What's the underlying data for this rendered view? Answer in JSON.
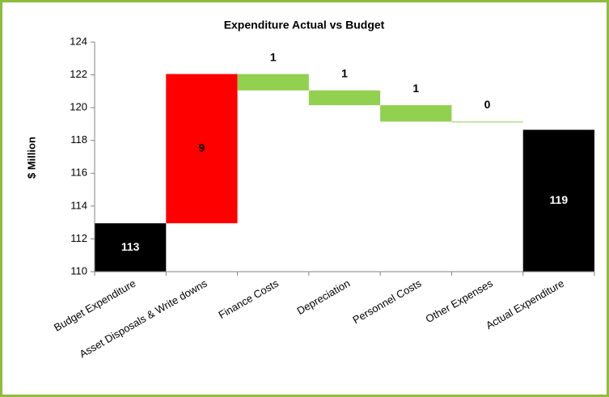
{
  "chart_data": {
    "type": "waterfall",
    "title": "Expenditure Actual vs Budget",
    "y_label": "$ Million",
    "categories": [
      "Budget Expenditure",
      "Asset Disposals & Write downs",
      "Finance Costs",
      "Depreciation",
      "Personnel Costs",
      "Other Expenses",
      "Actual Expenditure"
    ],
    "measures": [
      "total",
      "increase",
      "decrease",
      "decrease",
      "decrease",
      "decrease",
      "total"
    ],
    "values": [
      112.95,
      9.1,
      1.0,
      0.9,
      1.0,
      0.02,
      118.65
    ],
    "value_labels": [
      "113",
      "9",
      "1",
      "1",
      "1",
      "0",
      "119"
    ],
    "colors": [
      "#000000",
      "#ff0000",
      "#92d050",
      "#92d050",
      "#92d050",
      "#92d050",
      "#000000"
    ],
    "ylim": [
      110,
      124
    ],
    "yticks": [
      110,
      112,
      114,
      116,
      118,
      120,
      122,
      124
    ]
  }
}
